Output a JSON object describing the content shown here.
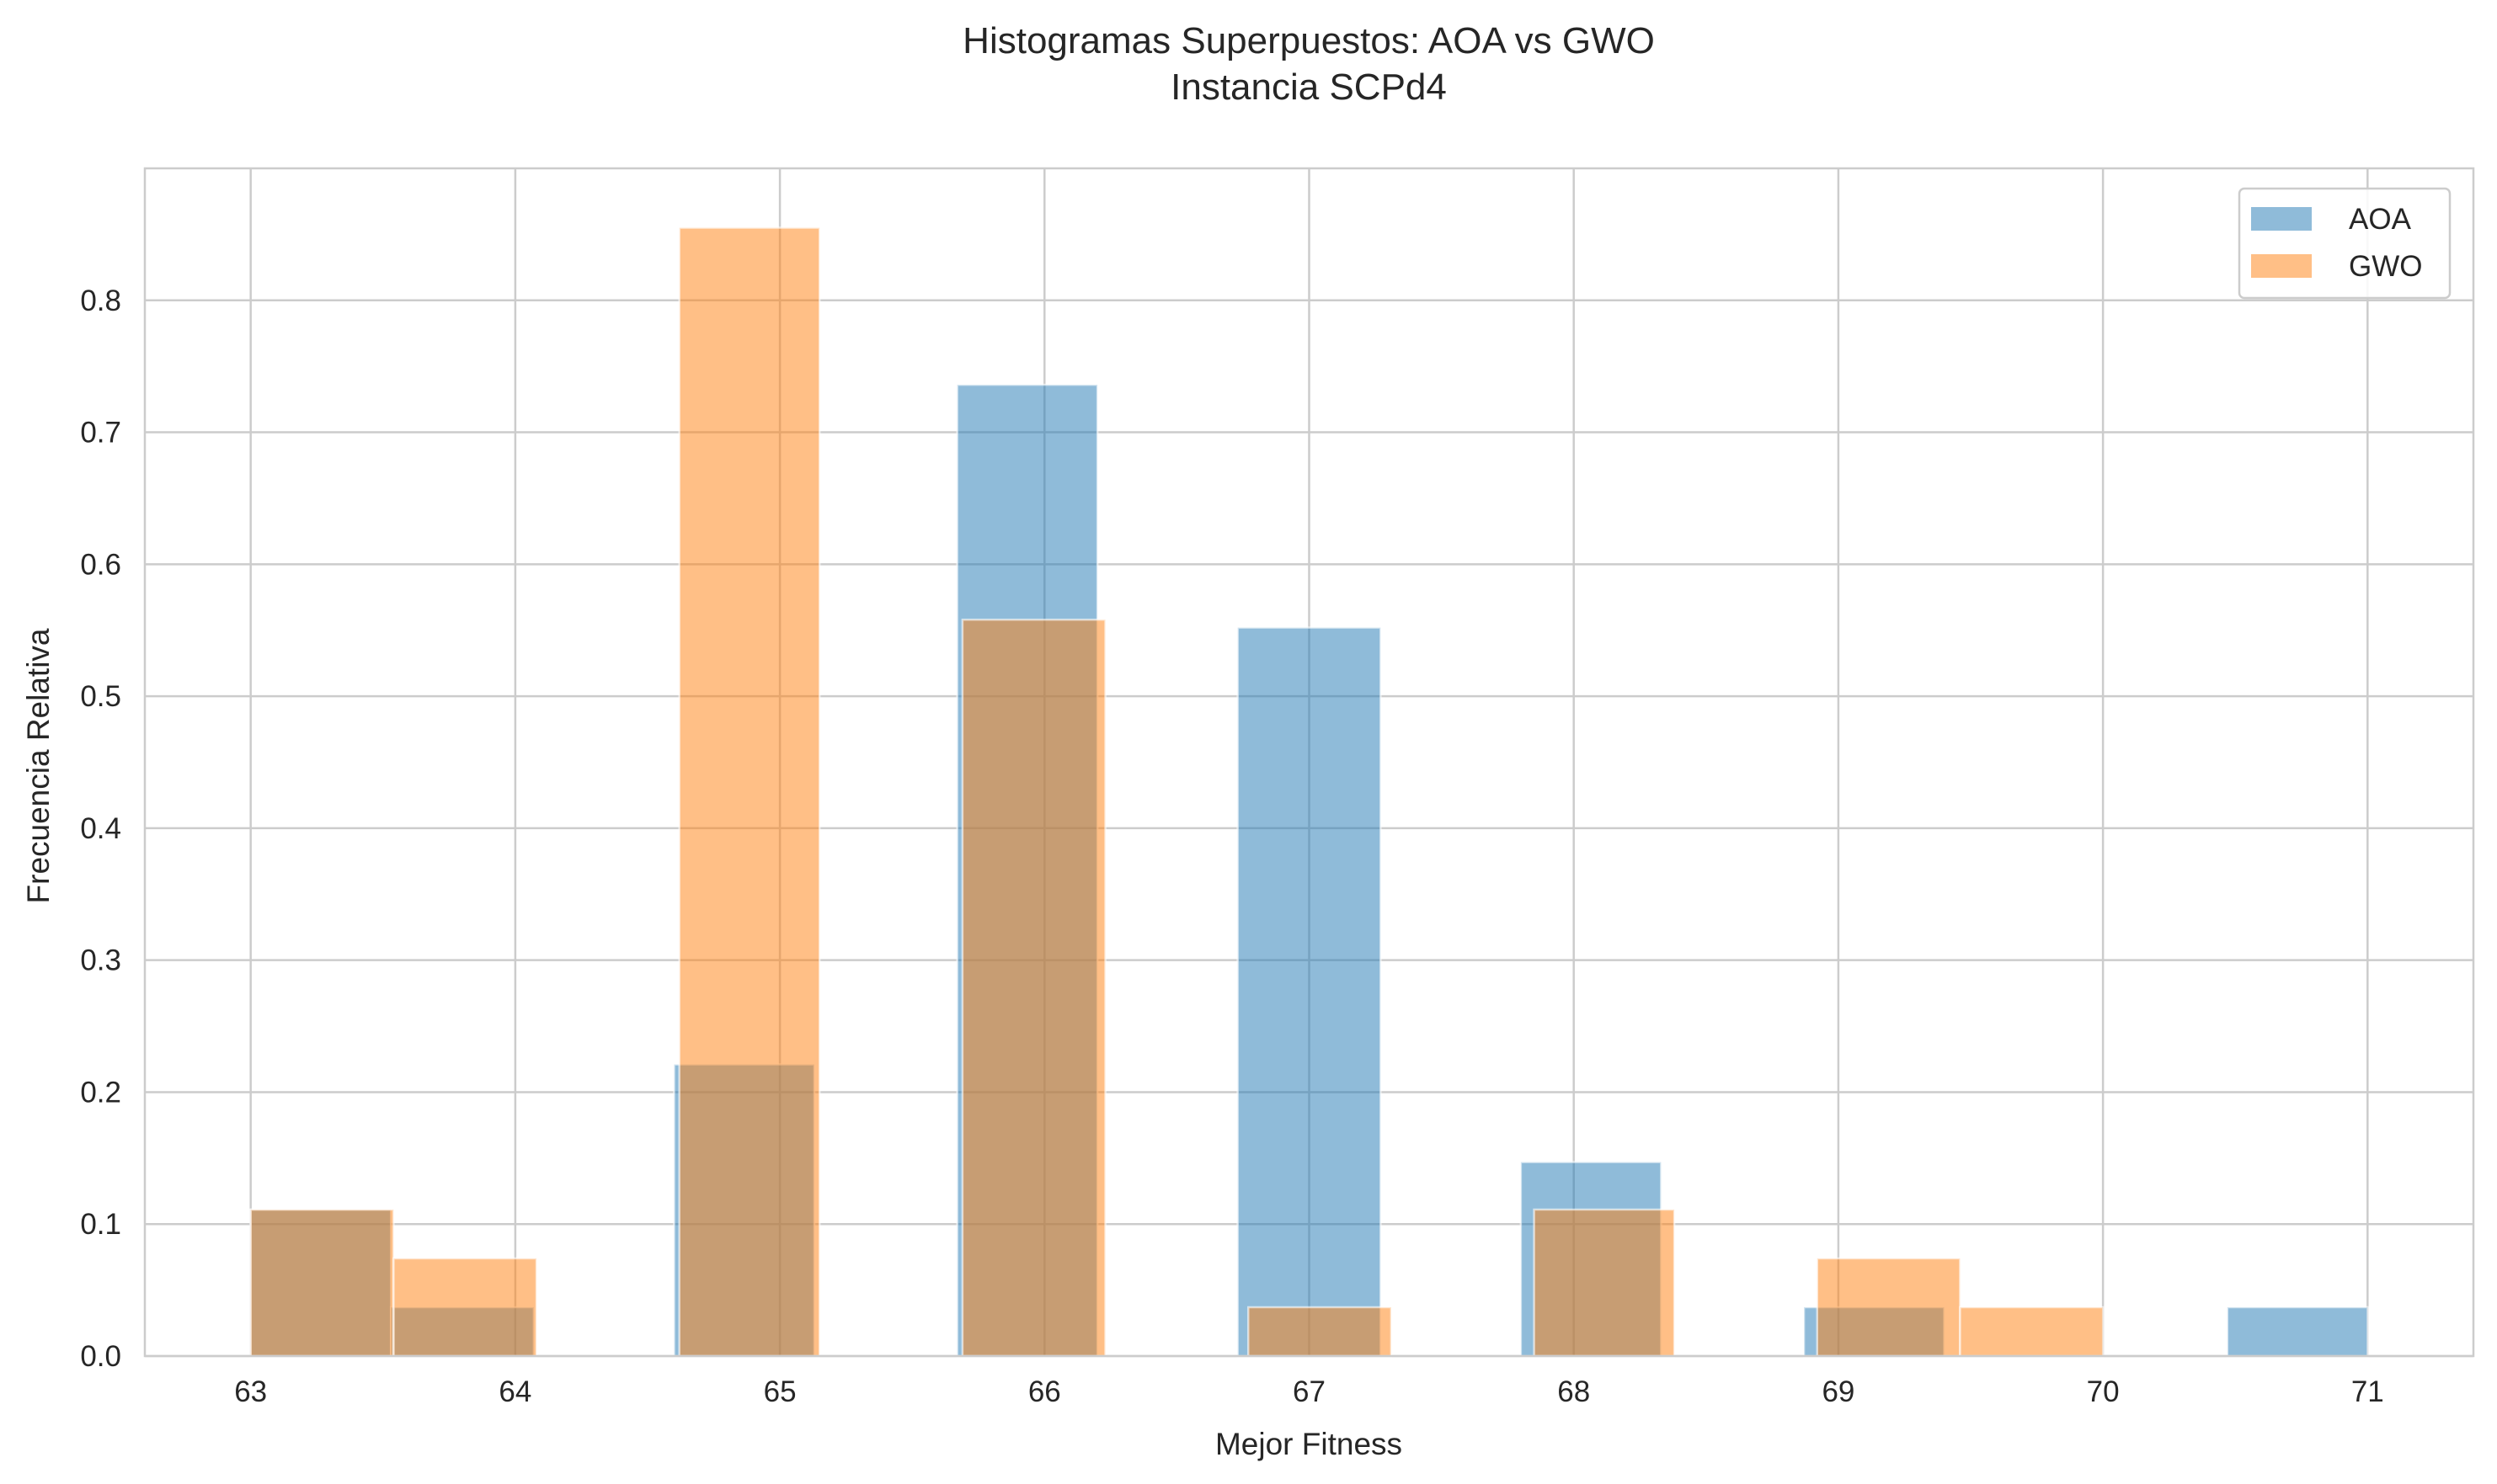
{
  "chart_data": {
    "type": "bar",
    "title": "Histogramas Superpuestos: AOA vs GWO",
    "subtitle": "Instancia SCPd4",
    "xlabel": "Mejor Fitness",
    "ylabel": "Frecuencia Relativa",
    "xlim": [
      62.6,
      71.4
    ],
    "ylim": [
      0,
      0.9
    ],
    "xticks": [
      "63",
      "64",
      "65",
      "66",
      "67",
      "68",
      "69",
      "70",
      "71"
    ],
    "yticks": [
      "0.0",
      "0.1",
      "0.2",
      "0.3",
      "0.4",
      "0.5",
      "0.6",
      "0.7",
      "0.8"
    ],
    "grid": true,
    "legend": "top-right",
    "series": [
      {
        "name": "AOA",
        "color": "#1f77b4",
        "bins": [
          {
            "x0": 63.0,
            "x1": 63.53,
            "value": 0.111
          },
          {
            "x0": 63.53,
            "x1": 64.07,
            "value": 0.037
          },
          {
            "x0": 64.6,
            "x1": 65.13,
            "value": 0.221
          },
          {
            "x0": 65.67,
            "x1": 66.2,
            "value": 0.736
          },
          {
            "x0": 66.73,
            "x1": 67.27,
            "value": 0.552
          },
          {
            "x0": 67.8,
            "x1": 68.33,
            "value": 0.147
          },
          {
            "x0": 68.87,
            "x1": 69.4,
            "value": 0.037
          },
          {
            "x0": 70.47,
            "x1": 71.0,
            "value": 0.037
          }
        ]
      },
      {
        "name": "GWO",
        "color": "#ff7f0e",
        "bins": [
          {
            "x0": 63.0,
            "x1": 63.54,
            "value": 0.111
          },
          {
            "x0": 63.54,
            "x1": 64.08,
            "value": 0.074
          },
          {
            "x0": 64.62,
            "x1": 65.15,
            "value": 0.855
          },
          {
            "x0": 65.69,
            "x1": 66.23,
            "value": 0.558
          },
          {
            "x0": 66.77,
            "x1": 67.31,
            "value": 0.037
          },
          {
            "x0": 67.85,
            "x1": 68.38,
            "value": 0.111
          },
          {
            "x0": 68.92,
            "x1": 69.46,
            "value": 0.074
          },
          {
            "x0": 69.46,
            "x1": 70.0,
            "value": 0.037
          }
        ]
      }
    ]
  }
}
